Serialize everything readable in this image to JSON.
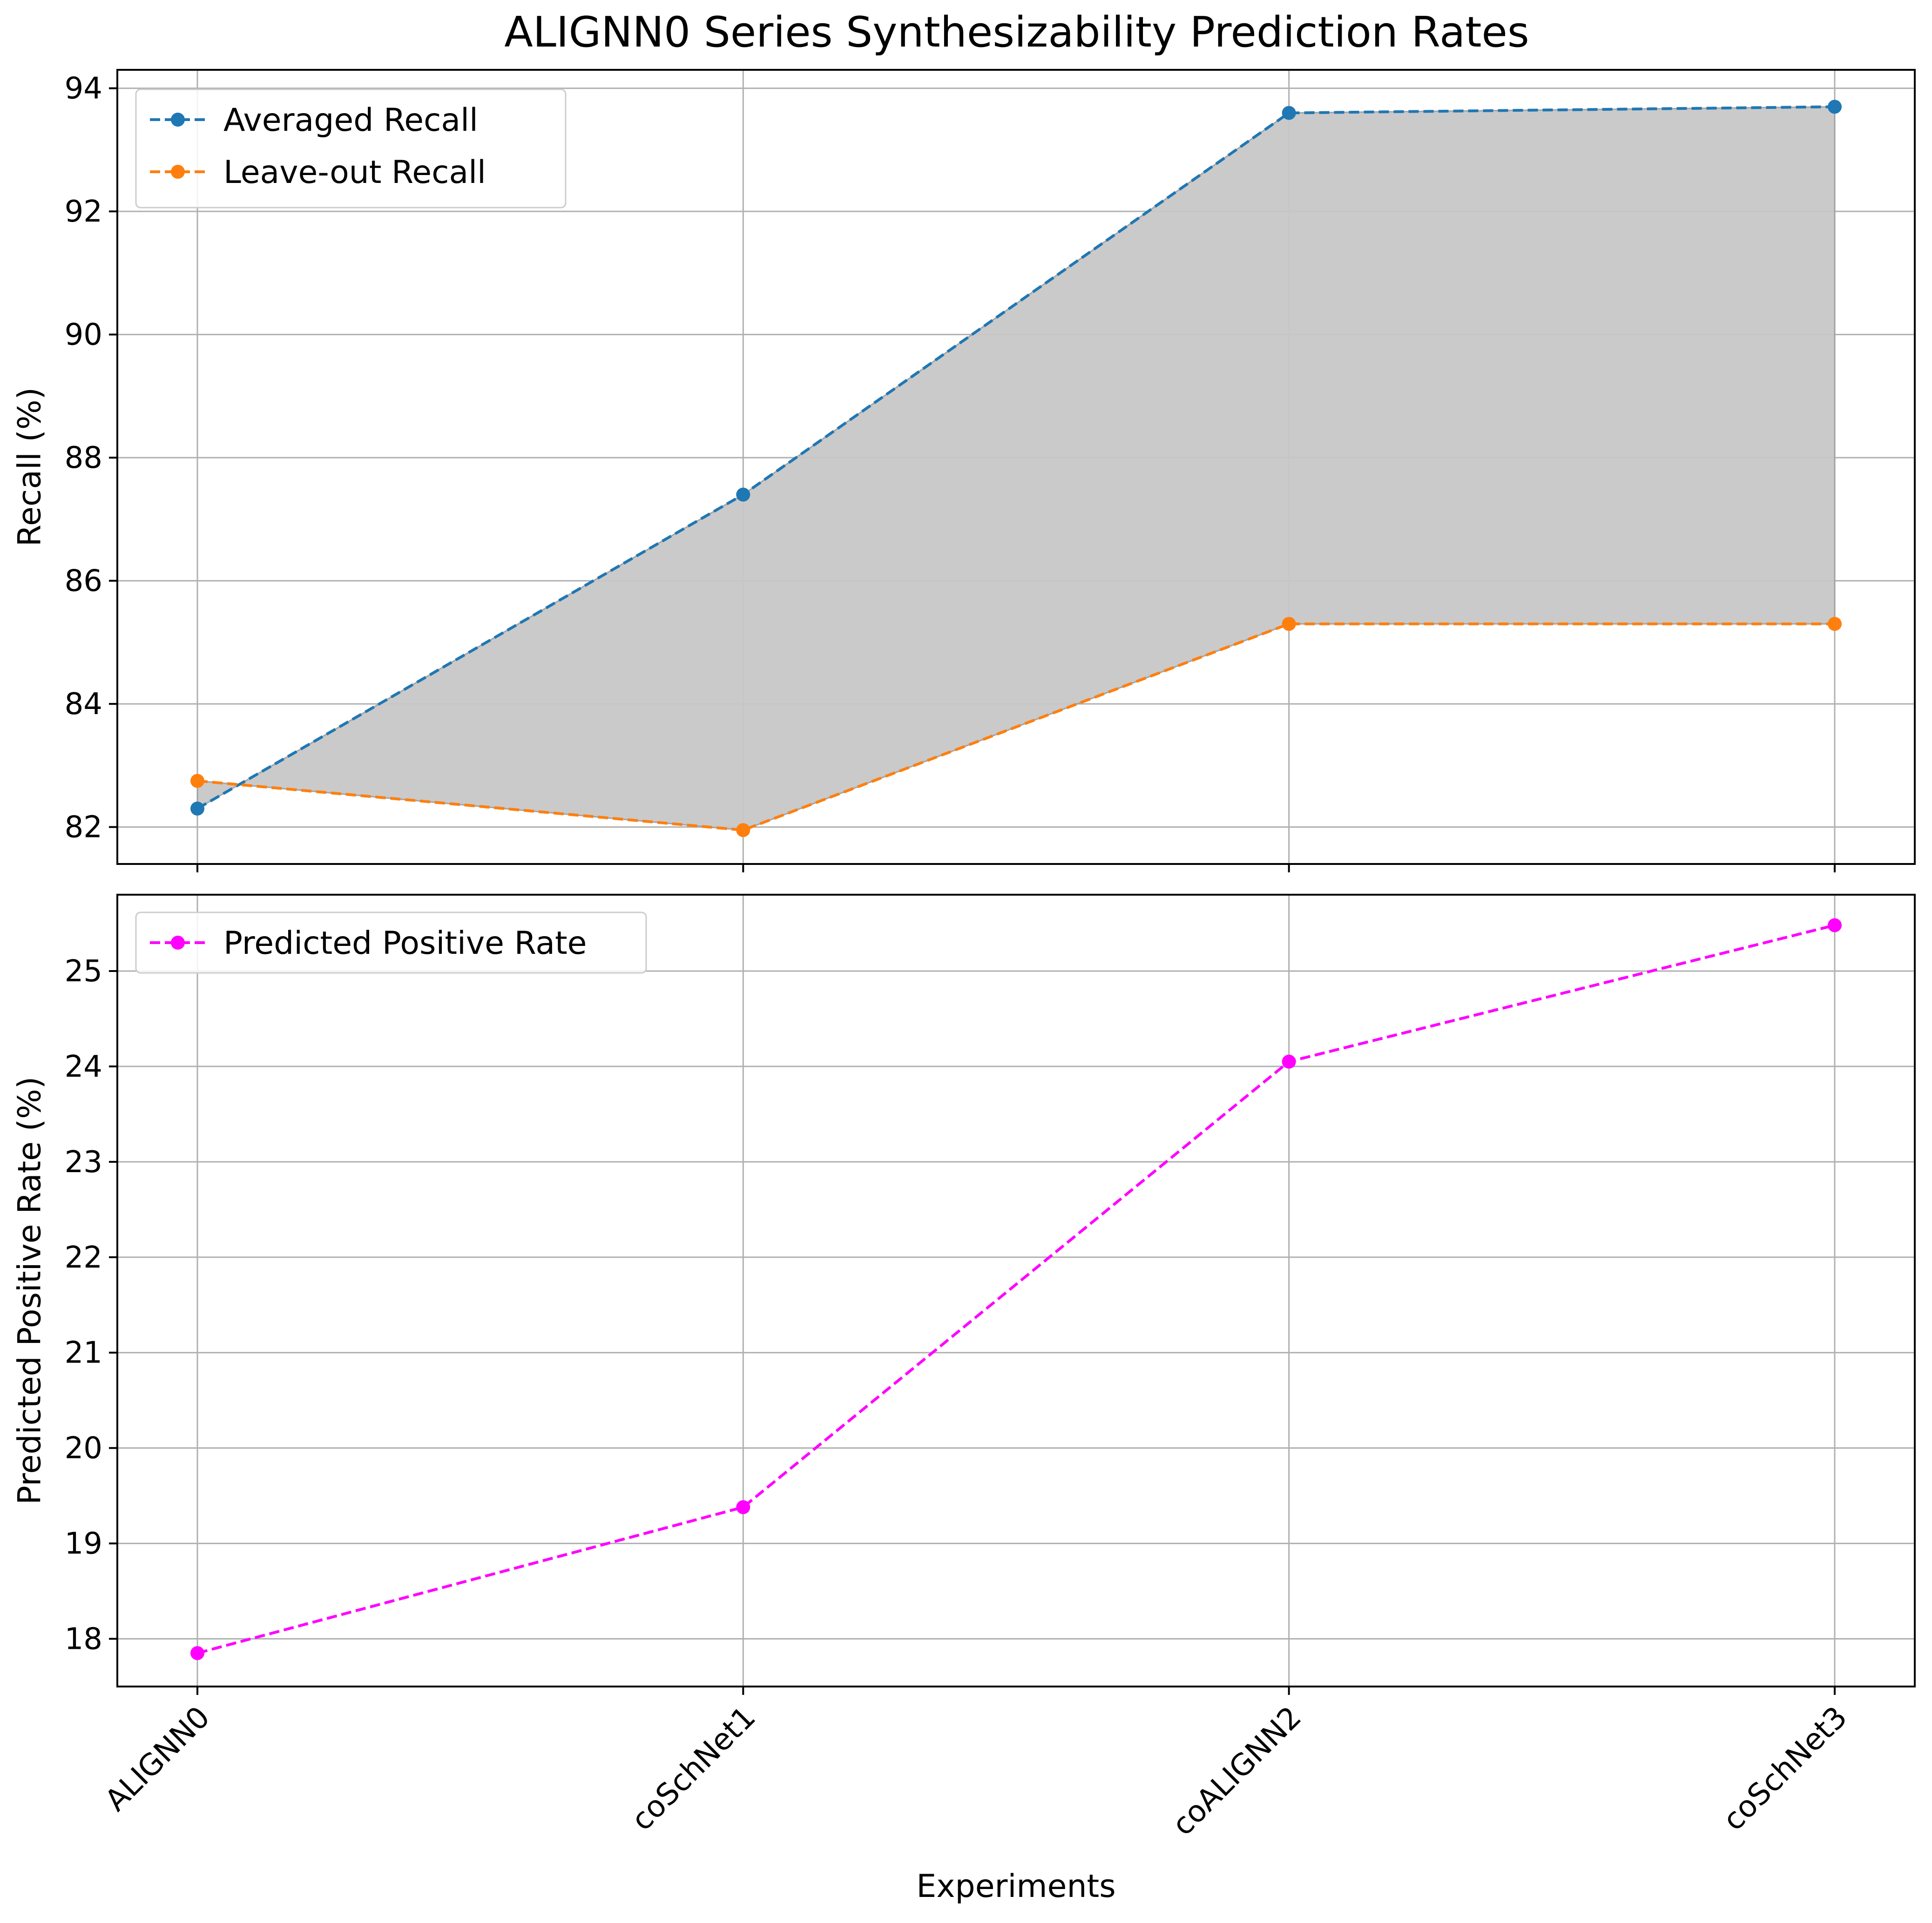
{
  "chart_data": [
    {
      "type": "line",
      "title": "ALIGNN0 Series Synthesizability Prediction Rates",
      "categories": [
        "ALIGNN0",
        "coSchNet1",
        "coALIGNN2",
        "coSchNet3"
      ],
      "xlabel": "",
      "ylabel": "Recall (%)",
      "ylim": [
        81.4,
        94.3
      ],
      "yticks": [
        82,
        84,
        86,
        88,
        90,
        92,
        94
      ],
      "grid": true,
      "legend_position": "top-left",
      "fill_between_series": true,
      "fill_color": "#c8c8c8",
      "series": [
        {
          "name": "Averaged Recall",
          "values": [
            82.3,
            87.4,
            93.6,
            93.7
          ],
          "color": "#1f77b4",
          "style": "dashed",
          "marker": "circle"
        },
        {
          "name": "Leave-out Recall",
          "values": [
            82.75,
            81.95,
            85.3,
            85.3
          ],
          "color": "#ff7f0e",
          "style": "dashed",
          "marker": "circle"
        }
      ]
    },
    {
      "type": "line",
      "title": "",
      "categories": [
        "ALIGNN0",
        "coSchNet1",
        "coALIGNN2",
        "coSchNet3"
      ],
      "xlabel": "Experiments",
      "ylabel": "Predicted Positive Rate (%)",
      "ylim": [
        17.5,
        25.8
      ],
      "yticks": [
        18,
        19,
        20,
        21,
        22,
        23,
        24,
        25
      ],
      "grid": true,
      "legend_position": "top-left",
      "series": [
        {
          "name": "Predicted Positive Rate",
          "values": [
            17.85,
            19.38,
            24.05,
            25.48
          ],
          "color": "#ff00ff",
          "style": "dashed",
          "marker": "circle"
        }
      ]
    }
  ]
}
